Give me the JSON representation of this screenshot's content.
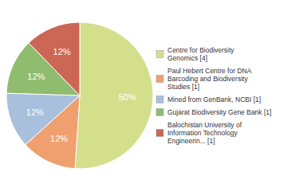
{
  "chart_data": {
    "type": "pie",
    "categories": [
      "Centre for Biodiversity\nGenomics [4]",
      "Paul Hebert Centre for DNA\nBarcoding and Biodiversity\nStudies [1]",
      "Mined from GenBank, NCBI [1]",
      "Gujarat Biodiversity Gene Bank [1]",
      "Balochistan University of\nInformation Technology\nEngineerin... [1]"
    ],
    "values": [
      50,
      12,
      12,
      12,
      12
    ],
    "value_labels": [
      "50%",
      "12%",
      "12%",
      "12%",
      "12%"
    ],
    "colors": [
      "#d4df8c",
      "#f0a06e",
      "#a8c0dc",
      "#8fbc6e",
      "#cc6655"
    ],
    "data_labels": true,
    "legend": "right"
  }
}
